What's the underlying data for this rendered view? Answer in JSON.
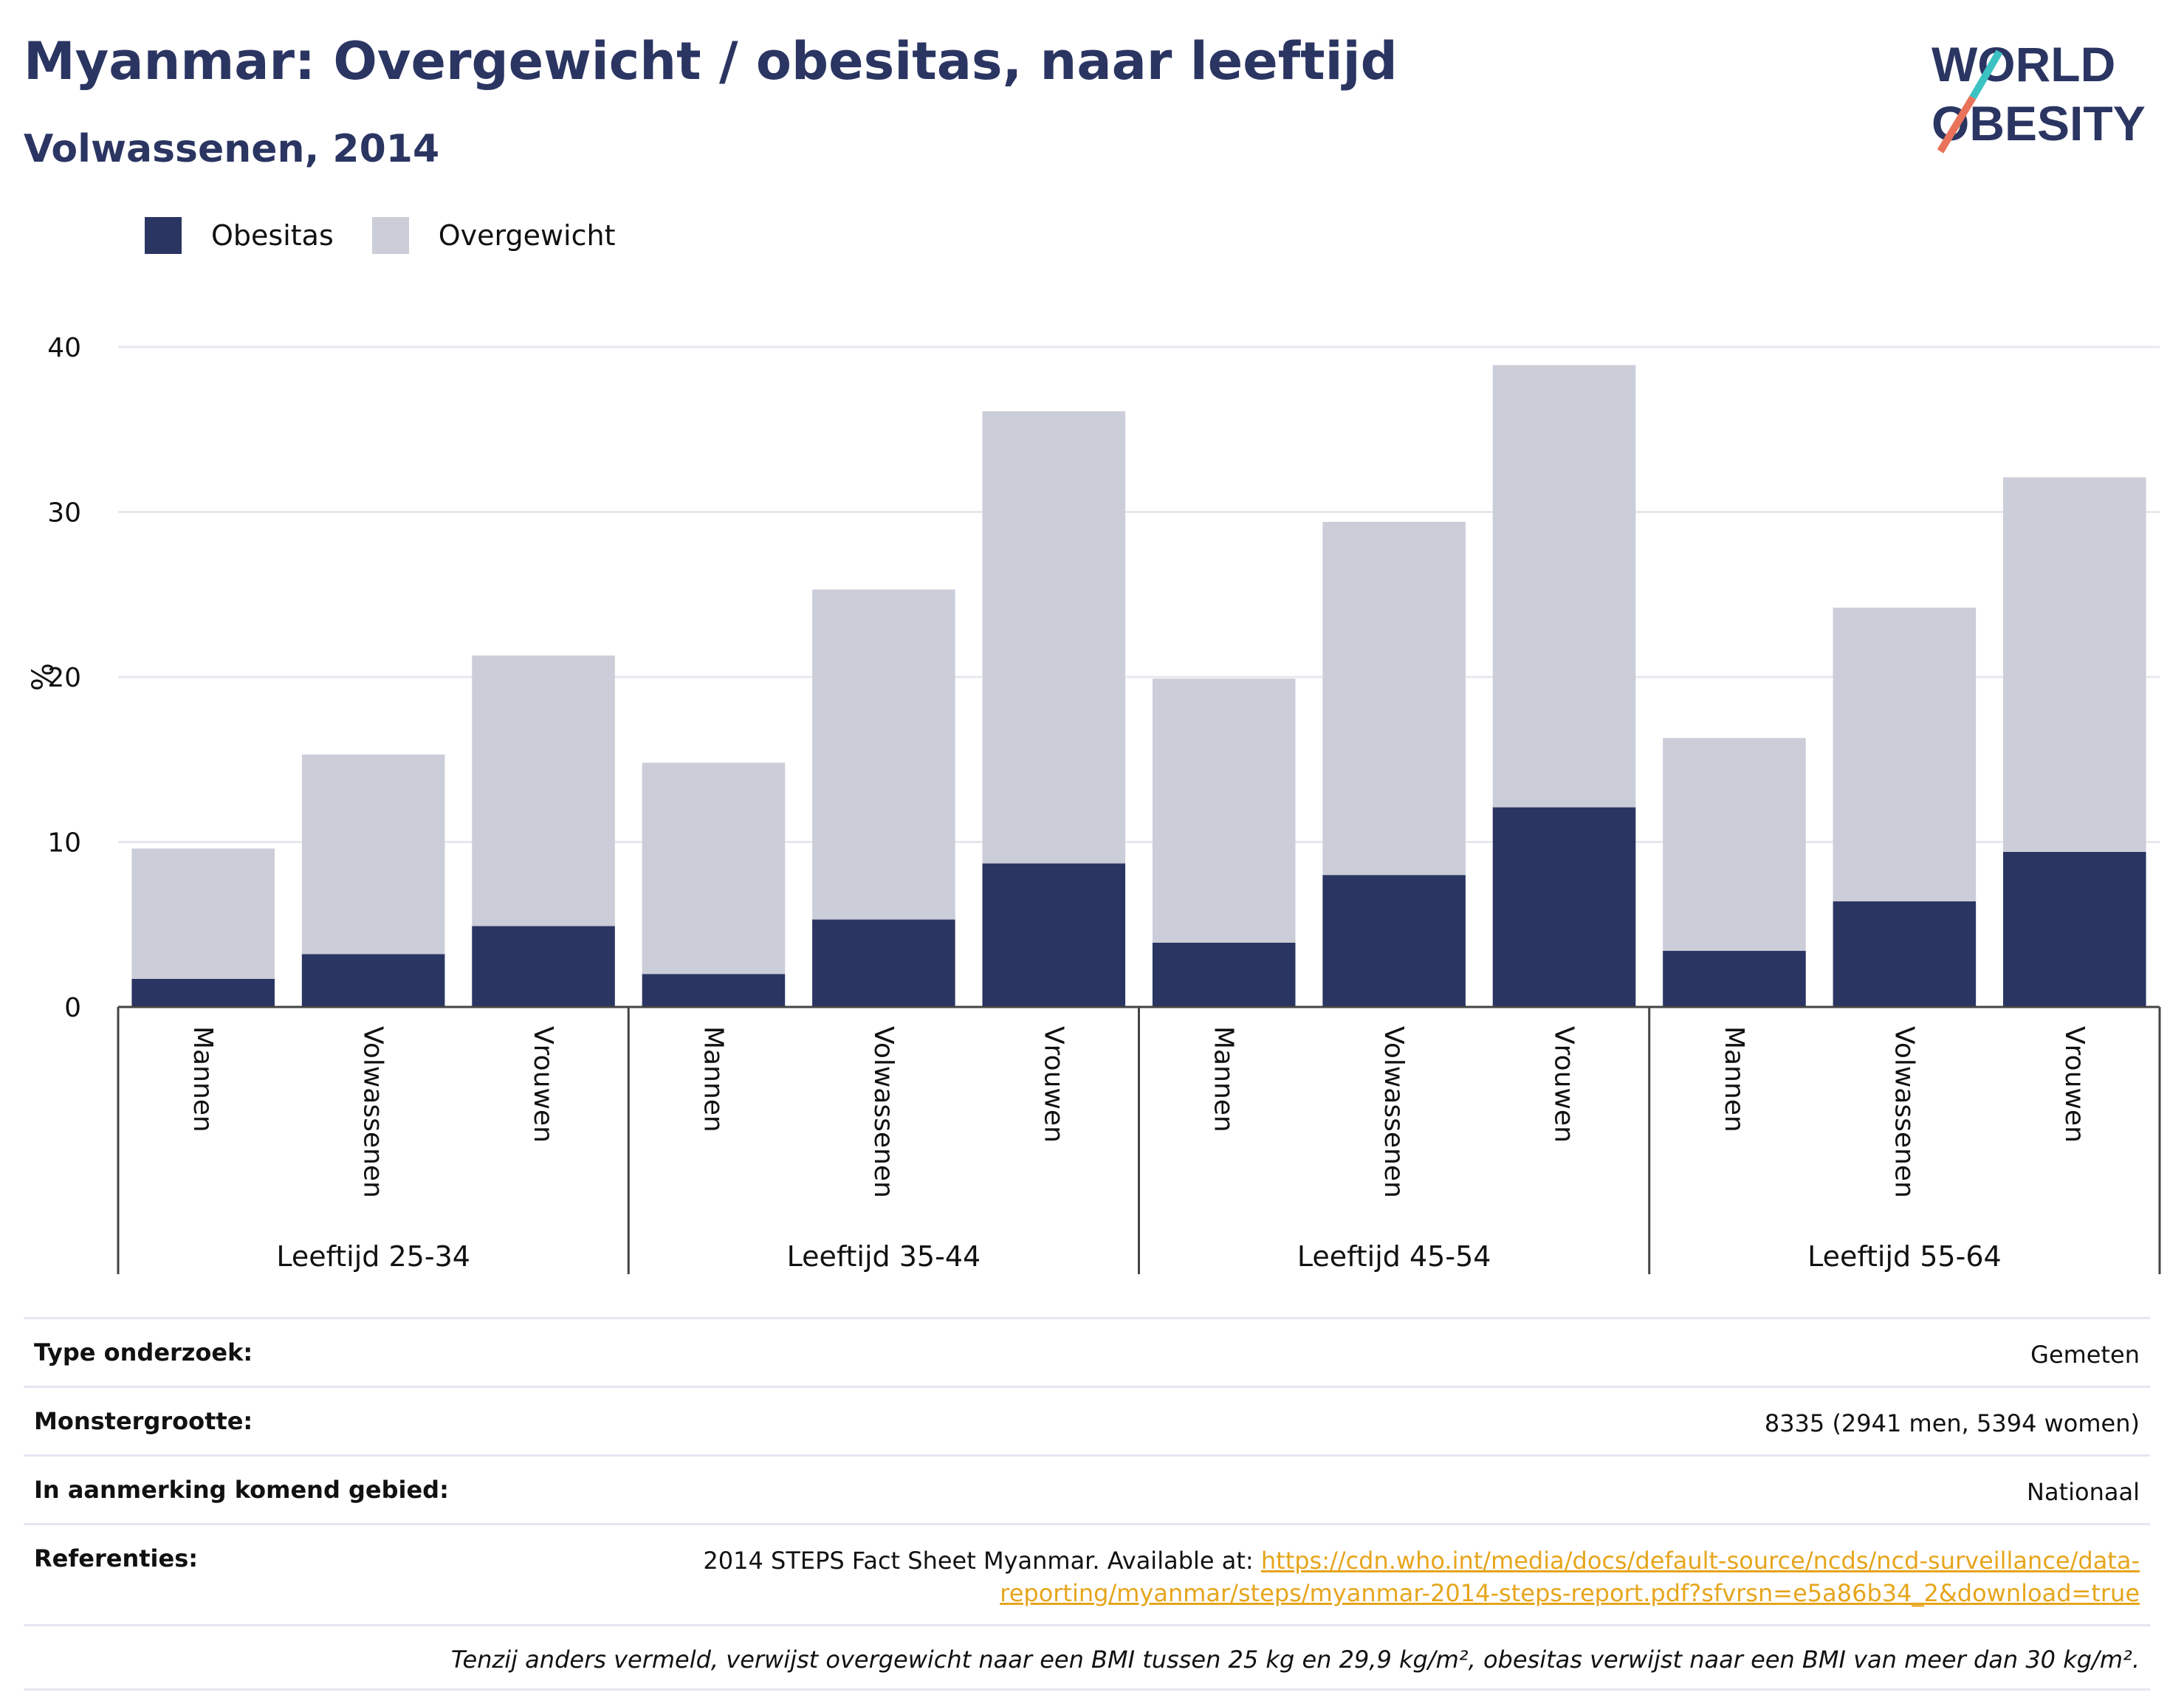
{
  "title": "Myanmar: Overgewicht / obesitas, naar leeftijd",
  "subtitle": "Volwassenen, 2014",
  "logo": {
    "line1": "WORLD",
    "line2": "OBESITY",
    "colors": [
      "#2b3562",
      "#e8735a",
      "#3cc2c2"
    ]
  },
  "colors": {
    "obesitas": "#2b3562",
    "overgewicht": "#cbcdd8",
    "title": "#2b3562",
    "link": "#e6a51c"
  },
  "legend": [
    {
      "label": "Obesitas",
      "color": "#2b3562"
    },
    {
      "label": "Overgewicht",
      "color": "#cbcdd8"
    }
  ],
  "chart_data": {
    "type": "bar",
    "stacked": true,
    "ylabel": "%",
    "ylim": [
      0,
      40
    ],
    "yticks": [
      0,
      10,
      20,
      30,
      40
    ],
    "grid": true,
    "legend_position": "top-left",
    "groups": [
      "Leeftijd 25-34",
      "Leeftijd 35-44",
      "Leeftijd 45-54",
      "Leeftijd 55-64"
    ],
    "categories": [
      "Mannen",
      "Volwassenen",
      "Vrouwen"
    ],
    "series": [
      {
        "name": "Obesitas",
        "values": [
          [
            1.7,
            3.2,
            4.9
          ],
          [
            2.0,
            5.3,
            8.7
          ],
          [
            3.9,
            8.0,
            12.1
          ],
          [
            3.4,
            6.4,
            9.4
          ]
        ]
      },
      {
        "name": "Overgewicht",
        "values": [
          [
            7.9,
            12.1,
            16.4
          ],
          [
            12.8,
            20.0,
            27.4
          ],
          [
            16.0,
            21.4,
            26.8
          ],
          [
            12.9,
            17.8,
            22.7
          ]
        ]
      }
    ]
  },
  "footer": {
    "rows": [
      {
        "key": "Type onderzoek:",
        "value": "Gemeten"
      },
      {
        "key": "Monstergrootte:",
        "value": "8335 (2941 men, 5394 women)"
      },
      {
        "key": "In aanmerking komend gebied:",
        "value": "Nationaal"
      },
      {
        "key": "Referenties:",
        "value": "2014 STEPS Fact Sheet Myanmar. Available at: ",
        "link": "https://cdn.who.int/media/docs/default-source/ncds/ncd-surveillance/data-reporting/myanmar/steps/myanmar-2014-steps-report.pdf?sfvrsn=e5a86b34_2&download=true"
      }
    ],
    "note": "Tenzij anders vermeld, verwijst overgewicht naar een BMI tussen 25 kg en 29,9 kg/m², obesitas verwijst naar een BMI van meer dan 30 kg/m²."
  }
}
